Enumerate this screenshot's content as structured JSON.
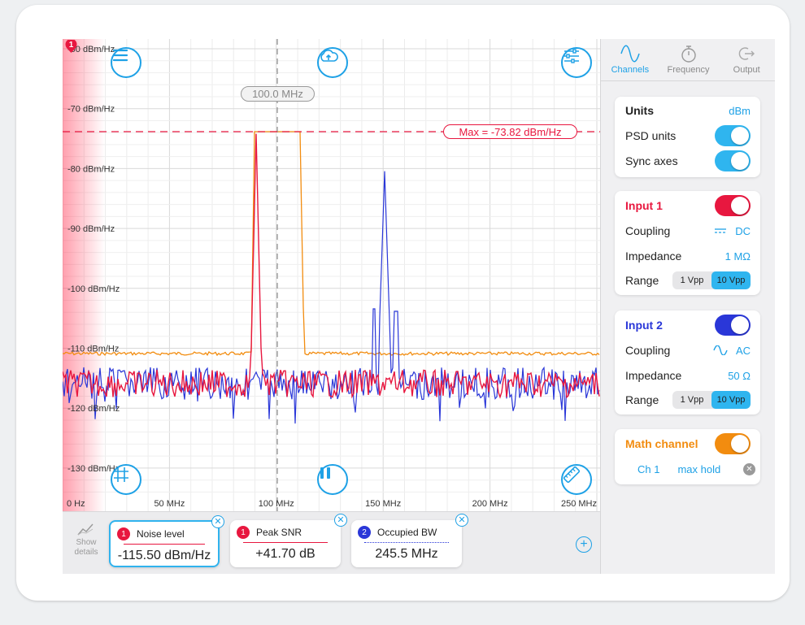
{
  "colors": {
    "accent": "#1ea1e6",
    "input1": "#e8173f",
    "input2": "#2a37d8",
    "math": "#f28c0f"
  },
  "plot": {
    "marker_badge": "1",
    "cursor_label": "100.0 MHz",
    "max_label": "Max = -73.82 dBm/Hz",
    "y_ticks": [
      "-60 dBm/Hz",
      "-70 dBm/Hz",
      "-80 dBm/Hz",
      "-90 dBm/Hz",
      "-100 dBm/Hz",
      "-110 dBm/Hz",
      "-120 dBm/Hz",
      "-130 dBm/Hz"
    ],
    "x_ticks": [
      "0 Hz",
      "50 MHz",
      "100 MHz",
      "150 MHz",
      "200 MHz",
      "250 MHz"
    ],
    "icons": {
      "menu": "menu-icon",
      "cloud": "cloud-upload-icon",
      "settings": "sliders-icon",
      "grid": "grid-icon",
      "pause": "pause-icon",
      "ruler": "ruler-icon"
    }
  },
  "bottom": {
    "show_details": "Show details",
    "measurements": [
      {
        "badge": "1",
        "label": "Noise level",
        "value": "-115.50 dBm/Hz"
      },
      {
        "badge": "1",
        "label": "Peak SNR",
        "value": "+41.70 dB"
      },
      {
        "badge": "2",
        "label": "Occupied BW",
        "value": "245.5 MHz"
      }
    ]
  },
  "side": {
    "tabs": [
      {
        "label": "Channels"
      },
      {
        "label": "Frequency"
      },
      {
        "label": "Output"
      }
    ],
    "units": {
      "title": "Units",
      "value": "dBm",
      "psd_label": "PSD units",
      "psd_on": true,
      "sync_label": "Sync axes",
      "sync_on": true
    },
    "input1": {
      "title": "Input 1",
      "enabled": true,
      "coupling_label": "Coupling",
      "coupling_value": "DC",
      "impedance_label": "Impedance",
      "impedance_value": "1 MΩ",
      "range_label": "Range",
      "range_options": [
        "1 Vpp",
        "10 Vpp"
      ],
      "range_selected": "10 Vpp"
    },
    "input2": {
      "title": "Input 2",
      "enabled": true,
      "coupling_label": "Coupling",
      "coupling_value": "AC",
      "impedance_label": "Impedance",
      "impedance_value": "50 Ω",
      "range_label": "Range",
      "range_options": [
        "1 Vpp",
        "10 Vpp"
      ],
      "range_selected": "10 Vpp"
    },
    "math": {
      "title": "Math channel",
      "enabled": true,
      "source": "Ch 1",
      "operation": "max hold"
    }
  }
}
